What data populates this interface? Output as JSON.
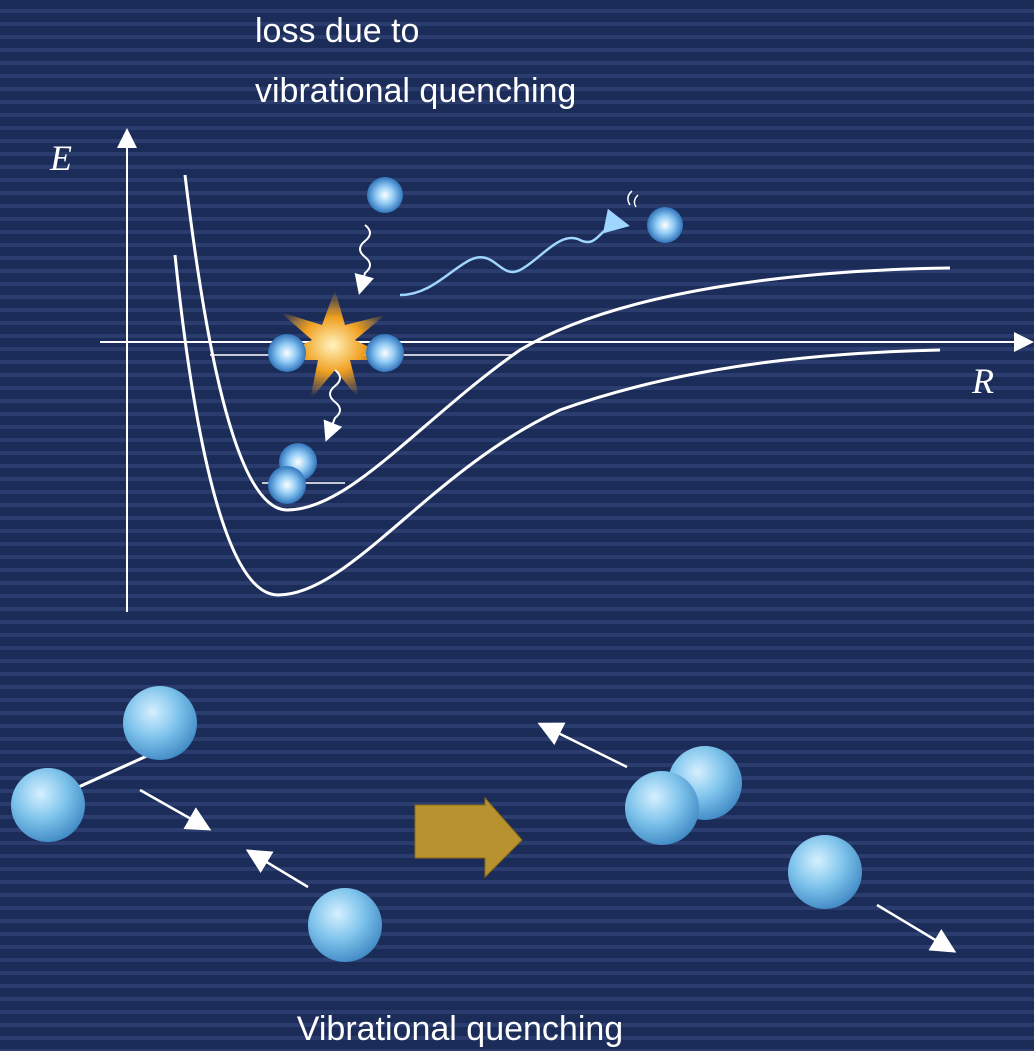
{
  "annotation": {
    "lines": [
      "loss due to",
      "vibrational quenching"
    ]
  },
  "axes": {
    "y_label": "E",
    "x_label": "R"
  },
  "caption": "Vibrational quenching"
}
